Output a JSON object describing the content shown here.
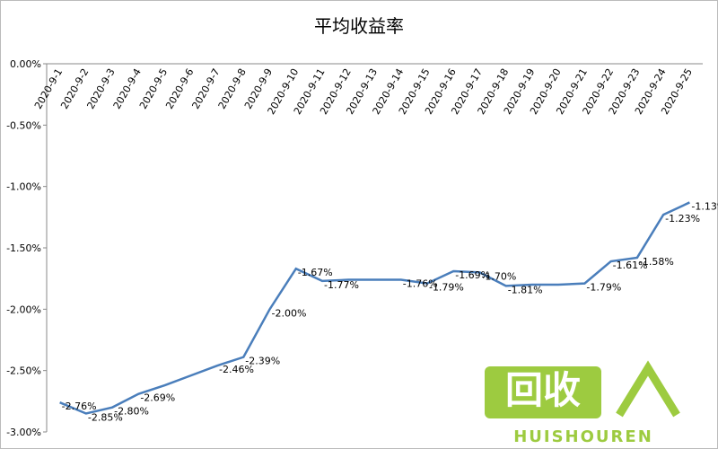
{
  "chart_data": {
    "type": "line",
    "title": "平均收益率",
    "categories": [
      "2020-9-1",
      "2020-9-2",
      "2020-9-3",
      "2020-9-4",
      "2020-9-5",
      "2020-9-6",
      "2020-9-7",
      "2020-9-8",
      "2020-9-9",
      "2020-9-10",
      "2020-9-11",
      "2020-9-12",
      "2020-9-13",
      "2020-9-14",
      "2020-9-15",
      "2020-9-16",
      "2020-9-17",
      "2020-9-18",
      "2020-9-19",
      "2020-9-20",
      "2020-9-21",
      "2020-9-22",
      "2020-9-23",
      "2020-9-24",
      "2020-9-25"
    ],
    "series": [
      {
        "color": "#4a7ebb",
        "values": [
          -2.76,
          -2.85,
          -2.8,
          -2.69,
          -2.62,
          -2.54,
          -2.46,
          -2.39,
          -2.0,
          -1.67,
          -1.77,
          -1.76,
          -1.76,
          -1.76,
          -1.79,
          -1.69,
          -1.7,
          -1.81,
          -1.8,
          -1.8,
          -1.79,
          -1.61,
          -1.58,
          -1.23,
          -1.13
        ],
        "value_labels": [
          "-2.76%",
          "-2.85%",
          "-2.80%",
          "-2.69%",
          null,
          null,
          "-2.46%",
          "-2.39%",
          "-2.00%",
          "-1.67%",
          "-1.77%",
          null,
          null,
          "-1.76%",
          "-1.79%",
          "-1.69%",
          "-1.70%",
          "-1.81%",
          null,
          null,
          "-1.79%",
          "-1.61%",
          "-1.58%",
          "-1.23%",
          "-1.13%"
        ]
      }
    ],
    "ylim": [
      -3,
      0
    ],
    "yticks": [
      {
        "value": 0,
        "label": "0.00%"
      },
      {
        "value": -0.5,
        "label": "-0.50%"
      },
      {
        "value": -1,
        "label": "-1.00%"
      },
      {
        "value": -1.5,
        "label": "-1.50%"
      },
      {
        "value": -2,
        "label": "-2.00%"
      },
      {
        "value": -2.5,
        "label": "-2.50%"
      },
      {
        "value": -3,
        "label": "-3.00%"
      }
    ]
  },
  "watermark": {
    "logo": "回收",
    "text": "HUISHOUREN"
  }
}
